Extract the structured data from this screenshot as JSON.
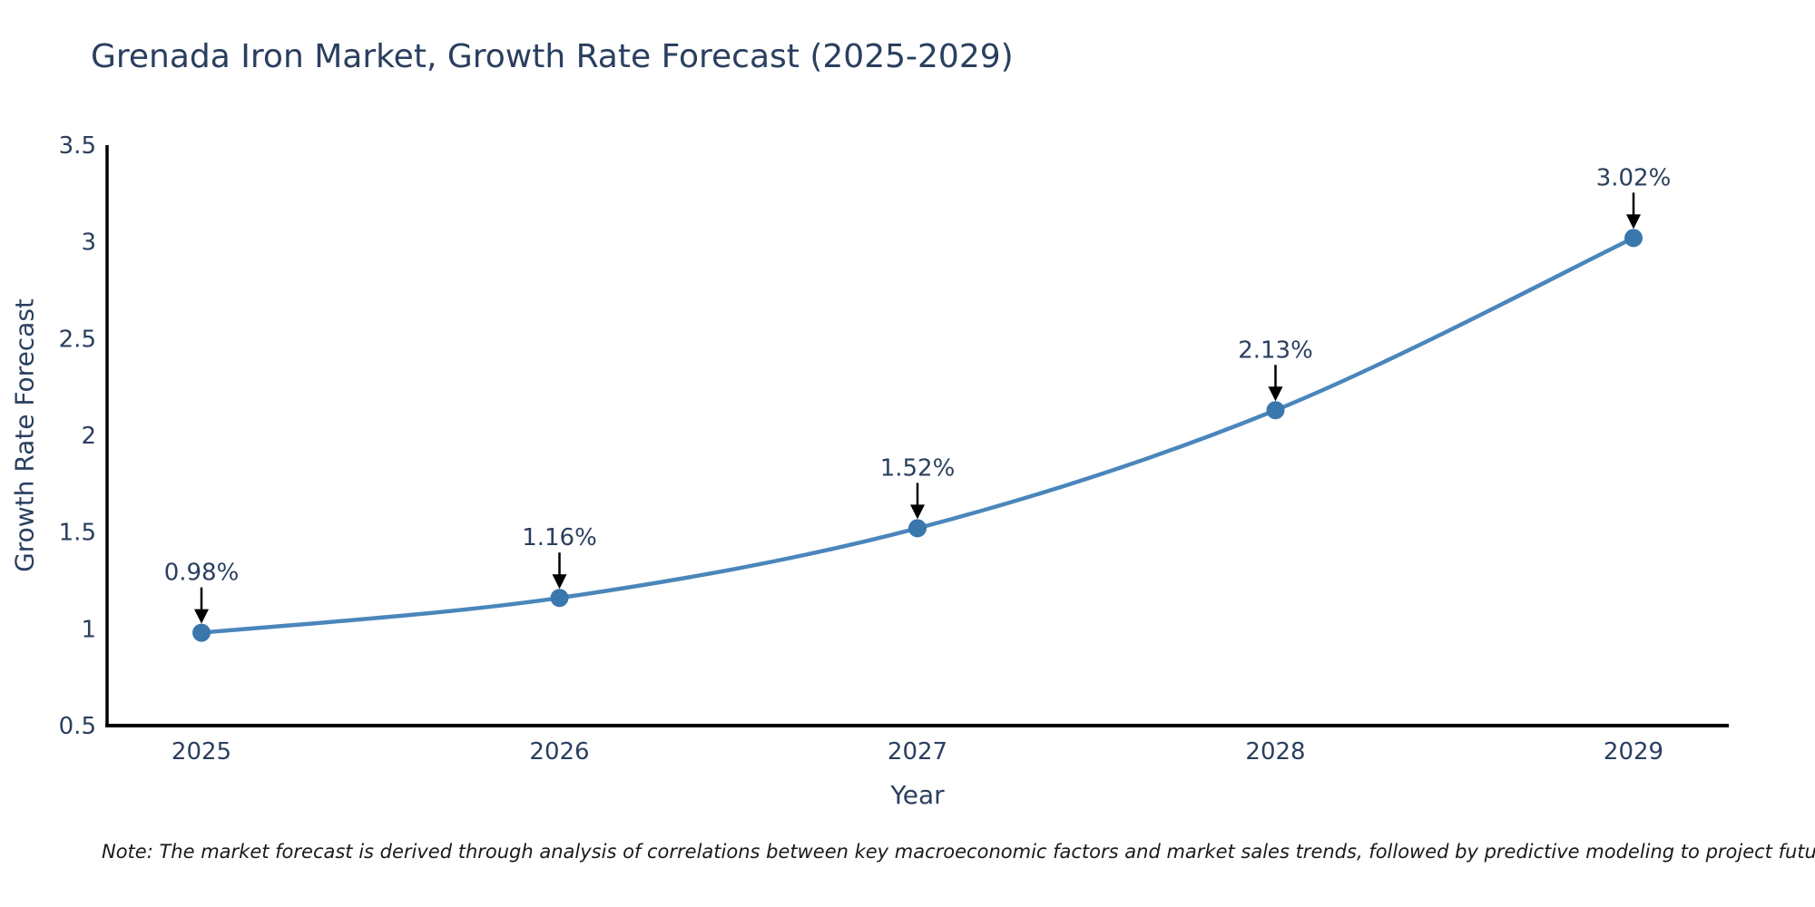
{
  "header": {
    "title": "Grenada Iron Market, Growth Rate Forecast (2025-2029)"
  },
  "footnote": {
    "text": "Note: The market forecast is derived through analysis of correlations between key macroeconomic factors and market sales trends, followed by predictive modeling to project future sales"
  },
  "chart_data": {
    "type": "line",
    "title": "Grenada Iron Market, Growth Rate Forecast (2025-2029)",
    "xlabel": "Year",
    "ylabel": "Growth Rate Forecast",
    "categories": [
      "2025",
      "2026",
      "2027",
      "2028",
      "2029"
    ],
    "values": [
      0.98,
      1.16,
      1.52,
      2.13,
      3.02
    ],
    "point_labels": [
      "0.98%",
      "1.16%",
      "1.52%",
      "2.13%",
      "3.02%"
    ],
    "ylim": [
      0.5,
      3.5
    ],
    "yticks": [
      0.5,
      1,
      1.5,
      2,
      2.5,
      3,
      3.5
    ],
    "ytick_labels": [
      "0.5",
      "1",
      "1.5",
      "2",
      "2.5",
      "3",
      "3.5"
    ],
    "grid": false,
    "legend_position": "none",
    "annotations_have_arrows": true,
    "colors": {
      "line": "#4a86bb",
      "marker": "#3a77ad",
      "axis": "#000000",
      "tick_text": "#2a3f5f",
      "annotation_text": "#2a3f5f",
      "annotation_arrow": "#000000"
    }
  }
}
